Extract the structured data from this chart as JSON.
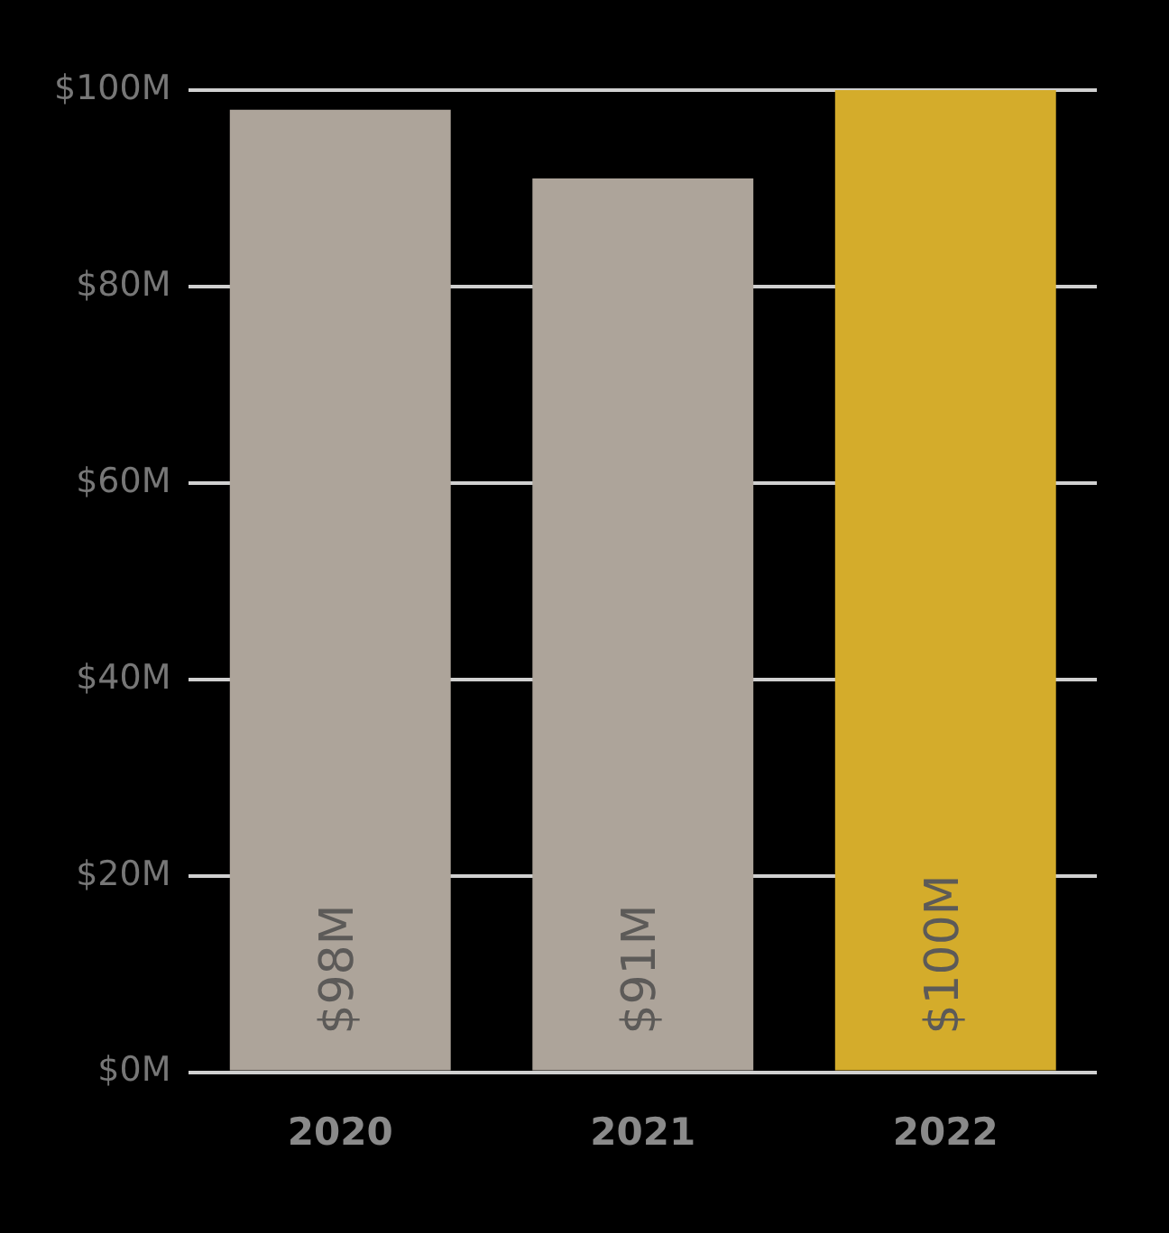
{
  "chart_data": {
    "type": "bar",
    "categories": [
      "2020",
      "2021",
      "2022"
    ],
    "values": [
      98,
      91,
      100
    ],
    "colors": [
      "#ada49a",
      "#ada49a",
      "#d4ac2b"
    ],
    "value_labels": [
      "$98M",
      "$91M",
      "$100M"
    ],
    "ylim": [
      0,
      100
    ],
    "yticks": [
      {
        "value": 0,
        "label": "$0M"
      },
      {
        "value": 20,
        "label": "$20M"
      },
      {
        "value": 40,
        "label": "$40M"
      },
      {
        "value": 60,
        "label": "$60M"
      },
      {
        "value": 80,
        "label": "$80M"
      },
      {
        "value": 100,
        "label": "$100M"
      }
    ],
    "grid": "y",
    "legend": false
  }
}
